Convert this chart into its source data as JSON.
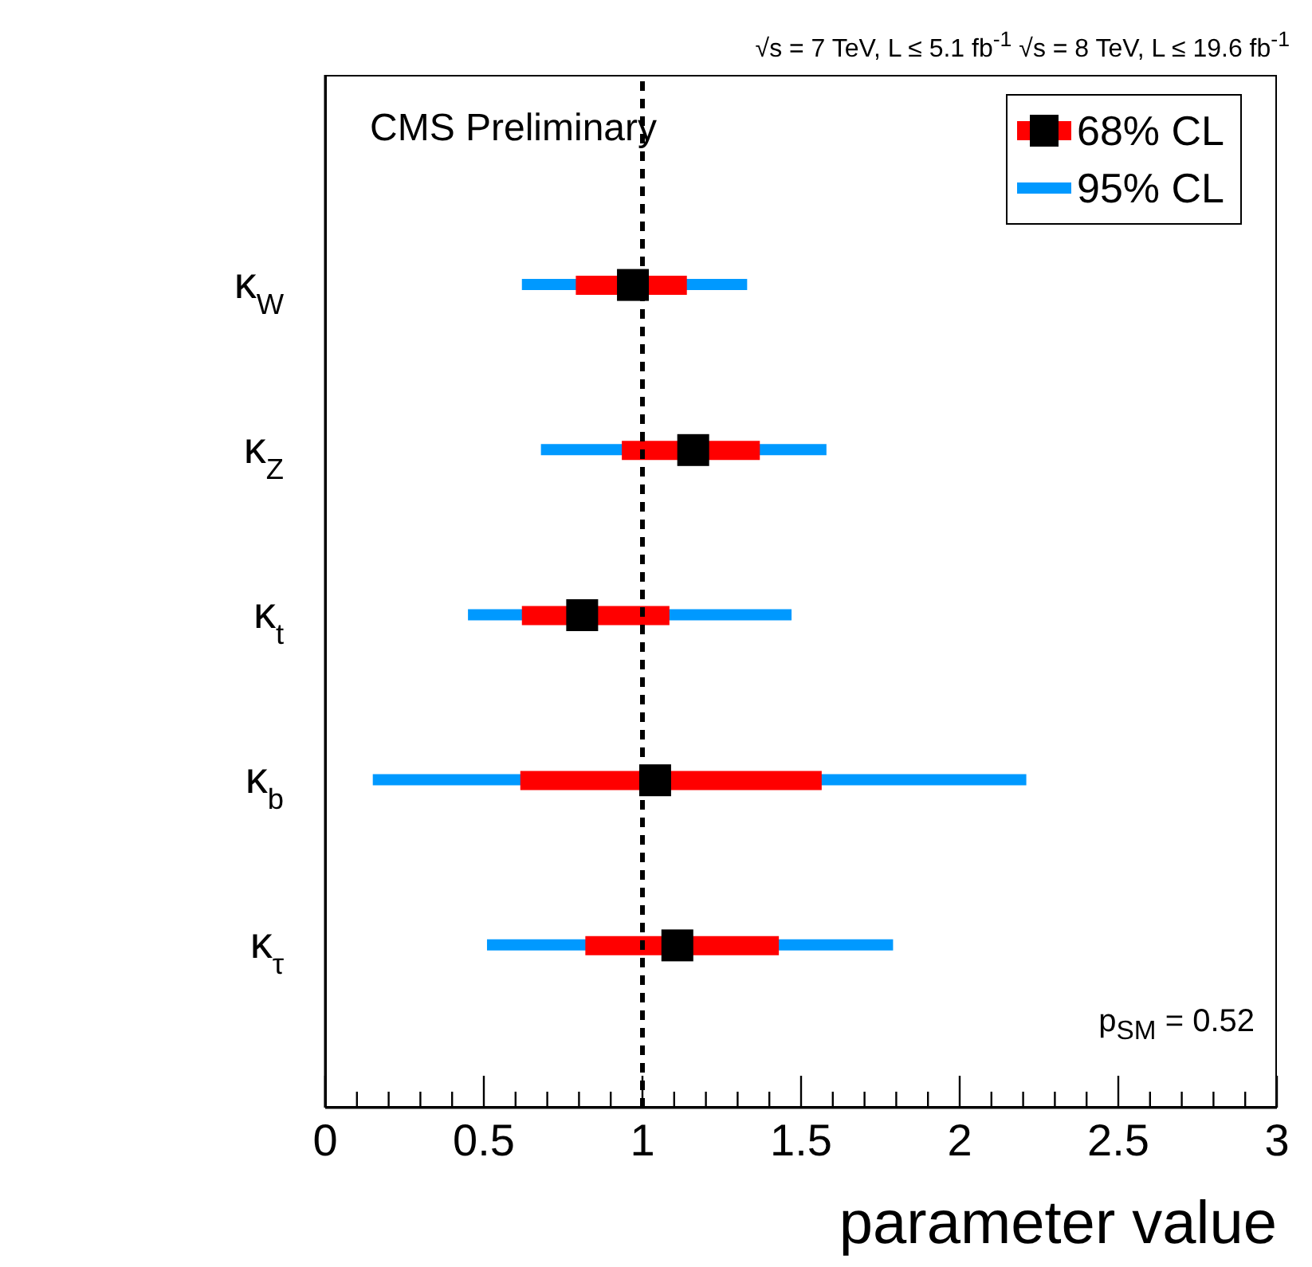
{
  "chart_data": {
    "type": "bar",
    "orientation": "horizontal",
    "categories": [
      "κ$_{W}$",
      "κ$_{Z}$",
      "κ$_{t}$",
      "κ$_{b}$",
      "κ$_{τ}$"
    ],
    "series": [
      {
        "name": "68% CL",
        "color": "#ff0000",
        "base": [
          0.79,
          0.935,
          0.62,
          0.615,
          0.82
        ],
        "values": [
          0.35,
          0.435,
          0.465,
          0.95,
          0.61
        ]
      },
      {
        "name": "95% CL",
        "color": "#0099ff",
        "base": [
          0.62,
          0.68,
          0.45,
          0.15,
          0.51
        ],
        "values": [
          0.71,
          0.9,
          1.02,
          2.06,
          1.28
        ]
      },
      {
        "type": "scatter",
        "color": "#000000",
        "marker": "square",
        "values": [
          0.97,
          1.16,
          0.81,
          1.04,
          1.11
        ]
      }
    ],
    "xlabel": "parameter value",
    "xlim": [
      0,
      3
    ],
    "xticks": [
      0,
      {
        "value": 0.1,
        "label": null
      },
      {
        "value": 0.2,
        "label": null
      },
      {
        "value": 0.3,
        "label": null
      },
      {
        "value": 0.4,
        "label": null
      },
      0.5,
      {
        "value": 0.6,
        "label": null
      },
      {
        "value": 0.7,
        "label": null
      },
      {
        "value": 0.8,
        "label": null
      },
      {
        "value": 0.9,
        "label": null
      },
      1,
      {
        "value": 1.1,
        "label": null
      },
      {
        "value": 1.2,
        "label": null
      },
      {
        "value": 1.3,
        "label": null
      },
      {
        "value": 1.4,
        "label": null
      },
      1.5,
      {
        "value": 1.6,
        "label": null
      },
      {
        "value": 1.7,
        "label": null
      },
      {
        "value": 1.8,
        "label": null
      },
      {
        "value": 1.9,
        "label": null
      },
      2,
      {
        "value": 2.1,
        "label": null
      },
      {
        "value": 2.2,
        "label": null
      },
      {
        "value": 2.3,
        "label": null
      },
      {
        "value": 2.4,
        "label": null
      },
      2.5,
      {
        "value": 2.6,
        "label": null
      },
      {
        "value": 2.7,
        "label": null
      },
      {
        "value": 2.8,
        "label": null
      },
      {
        "value": 2.9,
        "label": null
      },
      3
    ],
    "ref_lines": [
      {
        "axis": "x",
        "value": 1,
        "color": "#000000",
        "line_style": "dashed"
      }
    ],
    "annotations": [
      "CMS Preliminary",
      "√s = 7 TeV, L ≤ 5.1 fb$^{-1}$  √s = 8 TeV, L ≤ 19.6 fb$^{-1}$",
      "p$_{SM}$ = 0.52"
    ],
    "legend": "top right"
  }
}
